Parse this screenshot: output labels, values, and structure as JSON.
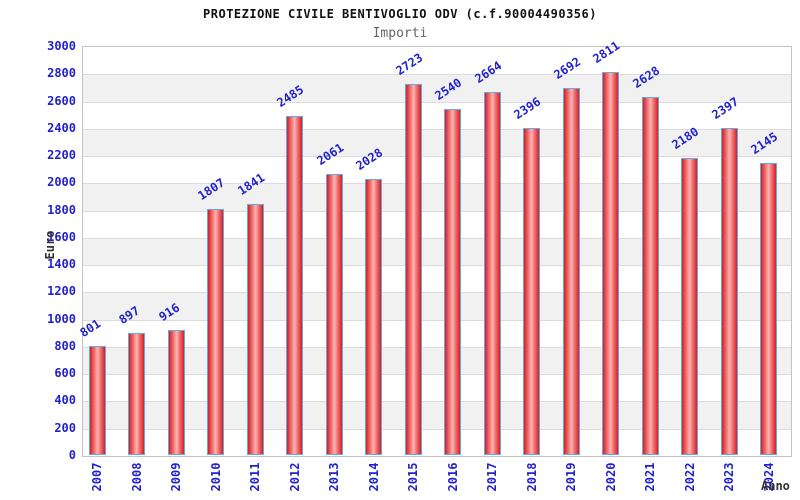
{
  "header": {
    "title": "PROTEZIONE CIVILE BENTIVOGLIO ODV (c.f.90004490356)",
    "subtitle": "Importi"
  },
  "axes": {
    "y_title": "Euro",
    "x_title": "Anno"
  },
  "chart_data": {
    "type": "bar",
    "title": "PROTEZIONE CIVILE BENTIVOGLIO ODV (c.f.90004490356)",
    "subtitle": "Importi",
    "xlabel": "Anno",
    "ylabel": "Euro",
    "categories": [
      "2007",
      "2008",
      "2009",
      "2010",
      "2011",
      "2012",
      "2013",
      "2014",
      "2015",
      "2016",
      "2017",
      "2018",
      "2019",
      "2020",
      "2021",
      "2022",
      "2023",
      "2024"
    ],
    "values": [
      801,
      897,
      916,
      1807,
      1841,
      2485,
      2061,
      2028,
      2723,
      2540,
      2664,
      2396,
      2692,
      2811,
      2628,
      2180,
      2397,
      2145
    ],
    "ylim": [
      0,
      3000
    ],
    "ytick_step": 200,
    "yticks": [
      0,
      200,
      400,
      600,
      800,
      1000,
      1200,
      1400,
      1600,
      1800,
      2000,
      2200,
      2400,
      2600,
      2800,
      3000
    ],
    "grid": true,
    "legend": "none",
    "value_labels": "above-bar-rotated",
    "colors": {
      "tick_label": "#2222cc",
      "value_label": "#2222cc",
      "bar_edge": "#d42020",
      "bar_mid": "#ef6d6d",
      "bar_center": "#ffb4b4",
      "bar_border": "#64a8e8",
      "band_alt": "#f1f1f1",
      "band_main": "#ffffff",
      "gridline": "#dcdcdc",
      "plot_border": "#c3c3c3",
      "title": "#111111",
      "subtitle": "#666666",
      "axis_title": "#333333"
    }
  }
}
